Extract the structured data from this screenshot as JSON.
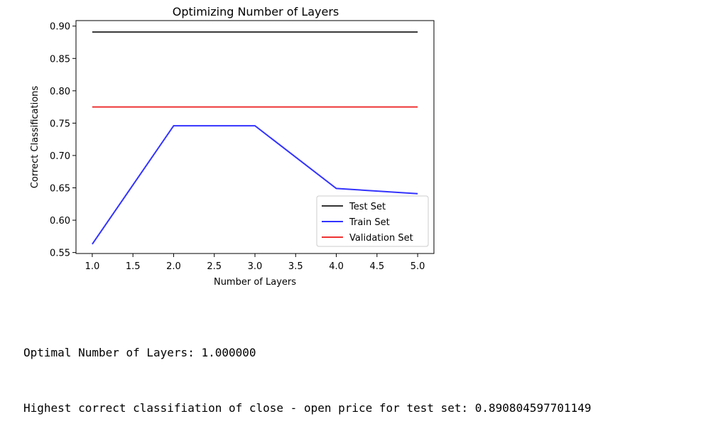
{
  "chart_data": {
    "type": "line",
    "title": "Optimizing Number of Layers",
    "xlabel": "Number of Layers",
    "ylabel": "Correct Classifications",
    "xlim": [
      0.8,
      5.2
    ],
    "ylim": [
      0.5485,
      0.9085
    ],
    "xticks": [
      "1.0",
      "1.5",
      "2.0",
      "2.5",
      "3.0",
      "3.5",
      "4.0",
      "4.5",
      "5.0"
    ],
    "yticks": [
      "0.55",
      "0.60",
      "0.65",
      "0.70",
      "0.75",
      "0.80",
      "0.85",
      "0.90"
    ],
    "grid": false,
    "legend": "lower-right",
    "x": [
      1,
      2,
      3,
      4,
      5
    ],
    "series": [
      {
        "name": "Test Set",
        "color": "#333333",
        "values": [
          0.8908,
          0.8908,
          0.8908,
          0.8908,
          0.8908
        ]
      },
      {
        "name": "Train Set",
        "color": "#3333ff",
        "values": [
          0.563,
          0.746,
          0.746,
          0.649,
          0.641
        ]
      },
      {
        "name": "Validation Set",
        "color": "#ee3333",
        "values": [
          0.775,
          0.775,
          0.775,
          0.775,
          0.775
        ]
      }
    ]
  },
  "output": {
    "line1": "Optimal Number of Layers: 1.000000",
    "line2": "Highest correct classifiation of close - open price for test set: 0.890804597701149"
  }
}
